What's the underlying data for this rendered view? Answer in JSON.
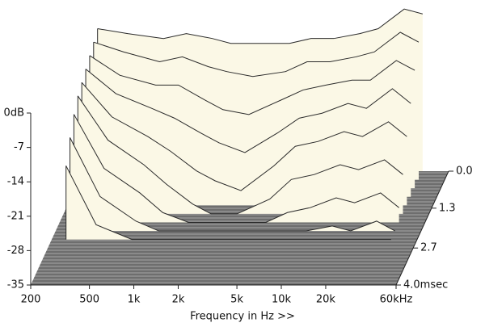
{
  "chart_data": {
    "type": "waterfall",
    "x_label": "Frequency in Hz >>",
    "log_x": true,
    "xlim": [
      200,
      60000
    ],
    "xticks": [
      200,
      500,
      {
        "value": 1000,
        "label": "1k"
      },
      {
        "value": 2000,
        "label": "2k"
      },
      {
        "value": 5000,
        "label": "5k"
      },
      {
        "value": 10000,
        "label": "10k"
      },
      {
        "value": 20000,
        "label": "20k"
      },
      {
        "value": 60000,
        "label": "60kHz"
      }
    ],
    "ylim": [
      -35,
      0
    ],
    "yticks": [
      {
        "value": 0,
        "label": "0dB"
      },
      -7,
      -14,
      -21,
      -28,
      -35
    ],
    "zlim": [
      0,
      4
    ],
    "zticks": [
      {
        "value": 0,
        "label": "0.0"
      },
      1.3,
      2.7,
      {
        "value": 4,
        "label": "4.0msec"
      }
    ],
    "surface_color": "#fbf8e6",
    "line_color": "#2a2a2a",
    "floor_color": "#8a8a8a",
    "x": [
      250,
      400,
      700,
      1000,
      1500,
      2000,
      3000,
      5000,
      7000,
      10000,
      15000,
      20000,
      30000,
      40000
    ],
    "slices": [
      {
        "z": 0,
        "values": [
          -6,
          -7,
          -8,
          -7,
          -8,
          -9,
          -9,
          -9,
          -8,
          -8,
          -7,
          -6,
          -2,
          -3
        ]
      },
      {
        "z": 0.3,
        "values": [
          -7,
          -9,
          -11,
          -10,
          -12,
          -13,
          -14,
          -13,
          -11,
          -11,
          -10,
          -9,
          -5,
          -7
        ]
      },
      {
        "z": 0.6,
        "values": [
          -8,
          -12,
          -14,
          -14,
          -17,
          -19,
          -20,
          -17,
          -15,
          -14,
          -13,
          -13,
          -9,
          -11
        ]
      },
      {
        "z": 0.9,
        "values": [
          -9,
          -14,
          -17,
          -19,
          -22,
          -24,
          -26,
          -22,
          -19,
          -18,
          -16,
          -17,
          -13,
          -16
        ]
      },
      {
        "z": 1.2,
        "values": [
          -10,
          -17,
          -21,
          -24,
          -28,
          -30,
          -32,
          -27,
          -23,
          -22,
          -20,
          -21,
          -18,
          -21
        ]
      },
      {
        "z": 1.5,
        "values": [
          -11,
          -20,
          -25,
          -29,
          -33,
          -35,
          -35,
          -32,
          -28,
          -27,
          -25,
          -26,
          -24,
          -27
        ]
      },
      {
        "z": 1.8,
        "values": [
          -13,
          -24,
          -29,
          -33,
          -35,
          -35,
          -35,
          -35,
          -33,
          -32,
          -30,
          -31,
          -29,
          -32
        ]
      },
      {
        "z": 2.1,
        "values": [
          -16,
          -28,
          -33,
          -35,
          -35,
          -35,
          -35,
          -35,
          -35,
          -35,
          -34,
          -35,
          -33,
          -35
        ]
      },
      {
        "z": 2.4,
        "values": [
          -20,
          -32,
          -35,
          -35,
          -35,
          -35,
          -35,
          -35,
          -35,
          -35,
          -35,
          -35,
          -35,
          -35
        ]
      }
    ]
  }
}
